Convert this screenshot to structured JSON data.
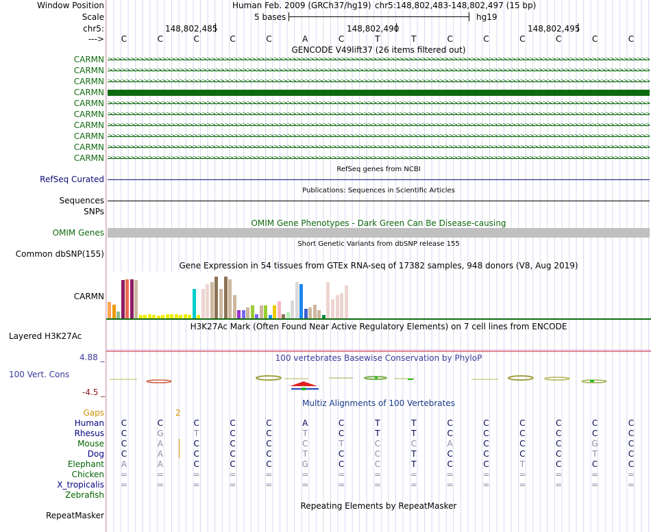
{
  "window_position": {
    "label": "Window Position",
    "assembly": "Human Feb. 2009 (GRCh37/hg19)",
    "range": "chr5:148,802,483-148,802,497 (15 bp)"
  },
  "scale": {
    "label": "Scale",
    "text": "5 bases",
    "db": "hg19"
  },
  "coords": {
    "label": "chr5:",
    "ticks": [
      "148,802,485",
      "148,802,490",
      "148,802,495"
    ]
  },
  "strand": {
    "label": "--->",
    "bases": [
      "C",
      "C",
      "C",
      "C",
      "C",
      "A",
      "C",
      "T",
      "T",
      "C",
      "C",
      "C",
      "C",
      "C",
      "C"
    ]
  },
  "gencode": {
    "title": "GENCODE V49lift37 (26 items filtered out)",
    "genes": [
      "CARMN",
      "CARMN",
      "CARMN",
      "CARMN",
      "CARMN",
      "CARMN",
      "CARMN",
      "CARMN",
      "CARMN",
      "CARMN"
    ]
  },
  "refseq": {
    "title": "RefSeq genes from NCBI",
    "label": "RefSeq Curated"
  },
  "publications": {
    "title": "Publications: Sequences in Scientific Articles",
    "label": "Sequences"
  },
  "snps": {
    "label": "SNPs"
  },
  "omim": {
    "title": "OMIM Gene Phenotypes - Dark Green Can Be Disease-causing",
    "label": "OMIM Genes"
  },
  "dbsnp": {
    "title": "Short Genetic Variants from dbSNP release 155",
    "label": "Common dbSNP(155)"
  },
  "gtex": {
    "title": "Gene Expression in 54 tissues from GTEx RNA-seq of 17382 samples, 948 donors (V8, Aug 2019)",
    "label": "CARMN",
    "values": [
      38,
      32,
      16,
      90,
      92,
      92,
      90,
      8,
      8,
      10,
      8,
      6,
      8,
      10,
      10,
      10,
      8,
      10,
      8,
      70,
      8,
      70,
      80,
      85,
      98,
      70,
      98,
      92,
      55,
      20,
      20,
      25,
      30,
      10,
      30,
      30,
      8,
      30,
      40,
      10,
      15,
      42,
      85,
      80,
      22,
      25,
      32,
      20,
      8,
      85,
      45,
      55,
      60,
      78
    ],
    "colors": [
      "#FFA54F",
      "#EE9A00",
      "#8FBC8F",
      "#8B1C62",
      "#EE6A50",
      "#8B1C62",
      "#CDB79E",
      "#EEEE00",
      "#EEEE00",
      "#EEEE00",
      "#EEEE00",
      "#EEEE00",
      "#EEEE00",
      "#EEEE00",
      "#EEEE00",
      "#EEEE00",
      "#EEEE00",
      "#EEEE00",
      "#EEEE00",
      "#00CDCD",
      "#EEEE00",
      "#EED5D2",
      "#EED5D2",
      "#CDB79E",
      "#8B7355",
      "#CDB79E",
      "#8B7355",
      "#CDB79E",
      "#CDB79E",
      "#9A32CD",
      "#7A67EE",
      "#CDB79E",
      "#9ACD32",
      "#7A67EE",
      "#CDB79E",
      "#9ACD32",
      "#1E90FF",
      "#EEC900",
      "#FFB6C1",
      "#8B7355",
      "#B4EEB4",
      "#D9D9D9",
      "#D9D9D9",
      "#1C86EE",
      "#3A5FCD",
      "#CDB79E",
      "#CDB79E",
      "#CDB79E",
      "#008B45",
      "#EED5D2",
      "#EED5D2",
      "#EED5D2",
      "#EED5D2",
      "#EED5D2"
    ]
  },
  "h3k27ac": {
    "title": "H3K27Ac Mark (Often Found Near Active Regulatory Elements) on 7 cell lines from ENCODE",
    "label": "Layered H3K27Ac"
  },
  "phylop": {
    "title": "100 vertebrates Basewise Conservation by PhyloP",
    "label": "100 Vert. Cons",
    "max": "4.88 _",
    "min": "-4.5 _"
  },
  "multiz": {
    "title": "Multiz Alignments of 100 Vertebrates",
    "gaps_label": "Gaps",
    "gaps_value": "2",
    "species": [
      {
        "name": "Human",
        "seq": [
          "C",
          "C",
          "C",
          "C",
          "C",
          "A",
          "C",
          "T",
          "T",
          "C",
          "C",
          "C",
          "C",
          "C",
          "C"
        ],
        "color": "#000080"
      },
      {
        "name": "Rhesus",
        "seq": [
          "C",
          "G",
          "T",
          "C",
          "C",
          "T",
          "C",
          "T",
          "T",
          "C",
          "C",
          "C",
          "C",
          "C",
          "C"
        ],
        "color": "#000080"
      },
      {
        "name": "Mouse",
        "seq": [
          "C",
          "A",
          "C",
          "C",
          "C",
          "C",
          "T",
          "C",
          "C",
          "A",
          "C",
          "C",
          "C",
          "G",
          "C"
        ],
        "color": "#006400"
      },
      {
        "name": "Dog",
        "seq": [
          "C",
          "A",
          "C",
          "C",
          "C",
          "T",
          "C",
          "C",
          "T",
          "C",
          "C",
          "C",
          "C",
          "T",
          "C"
        ],
        "color": "#000080"
      },
      {
        "name": "Elephant",
        "seq": [
          "A",
          "A",
          "C",
          "C",
          "C",
          "G",
          "C",
          "C",
          "T",
          "C",
          "C",
          "T",
          "C",
          "C",
          "C"
        ],
        "color": "#006400"
      },
      {
        "name": "Chicken",
        "seq": [
          "=",
          "=",
          "=",
          "=",
          "=",
          "=",
          "=",
          "=",
          "=",
          "=",
          "=",
          "=",
          "=",
          "=",
          "="
        ],
        "color": "#006400"
      },
      {
        "name": "X_tropicalis",
        "seq": [
          "=",
          "=",
          "=",
          "=",
          "=",
          "=",
          "=",
          "=",
          "=",
          "=",
          "=",
          "=",
          "=",
          "=",
          "="
        ],
        "color": "#000080"
      },
      {
        "name": "Zebrafish",
        "seq": [],
        "color": "#006400"
      }
    ]
  },
  "repeatmasker": {
    "title": "Repeating Elements by RepeatMasker",
    "label": "RepeatMasker"
  },
  "colors": {
    "gene_green": "#0f6a0f",
    "refseq_blue": "#0c0c78",
    "omim_gray": "#c0c0c0",
    "phylop_blue": "#3a3a9a",
    "gaps_orange": "#d08f00"
  }
}
